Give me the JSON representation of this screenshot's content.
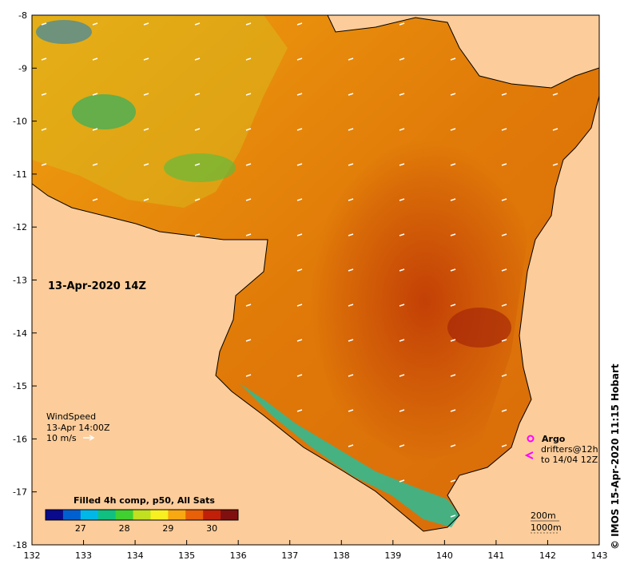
{
  "map": {
    "date_label": "13-Apr-2020 14Z",
    "lon_ticks": [
      "132",
      "133",
      "134",
      "135",
      "136",
      "137",
      "138",
      "139",
      "140",
      "141",
      "142",
      "143"
    ],
    "lat_ticks": [
      "-8",
      "-9",
      "-10",
      "-11",
      "-12",
      "-13",
      "-14",
      "-15",
      "-16",
      "-17",
      "-18"
    ],
    "lon_range": [
      132,
      143
    ],
    "lat_range": [
      -8,
      -18
    ],
    "land_color": "#fccc9a",
    "coast_color": "#000000"
  },
  "wind": {
    "title": "WindSpeed",
    "time": "13-Apr 14:00Z",
    "scale_label": "10 m/s"
  },
  "colorbar": {
    "title": "Filled 4h comp, p50, All Sats",
    "ticks": [
      "27",
      "28",
      "29",
      "30"
    ],
    "tick_values": [
      27,
      28,
      29,
      30
    ],
    "range": [
      26.2,
      30.6
    ],
    "colors": [
      "#0a0a8c",
      "#0060d0",
      "#00b8e8",
      "#10c080",
      "#40d030",
      "#c0e020",
      "#f8f020",
      "#f8a810",
      "#e86008",
      "#c02008",
      "#801010"
    ]
  },
  "legend": {
    "argo_label": "Argo",
    "drifters_line1": "drifters@12h",
    "drifters_line2": "to 14/04 12Z",
    "argo_color": "#ff00ff"
  },
  "contours": {
    "c200": "200m",
    "c1000": "1000m"
  },
  "credit": "©  IMOS 15-Apr-2020 11:15 Hobart"
}
